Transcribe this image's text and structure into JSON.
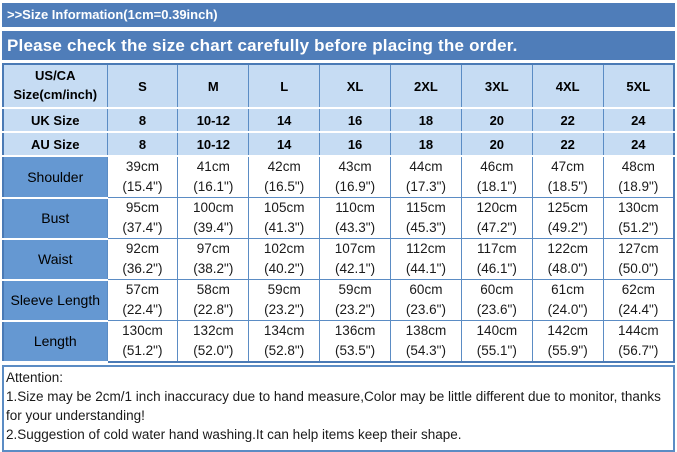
{
  "colors": {
    "bar_blue": "#4f7db9",
    "header_light_blue": "#c6dcf3",
    "label_blue": "#6598d2",
    "grid_blue": "#5b8cc4",
    "text_white": "#ffffff",
    "text_black": "#1a1a1a"
  },
  "header": {
    "title": ">>Size Information(1cm=0.39inch)"
  },
  "notice": {
    "text": "Please check the size chart carefully before placing the order."
  },
  "size_table": {
    "corner_label": "US/CA\nSize(cm/inch)",
    "columns": [
      "S",
      "M",
      "L",
      "XL",
      "2XL",
      "3XL",
      "4XL",
      "5XL"
    ],
    "size_rows": [
      {
        "label": "UK Size",
        "values": [
          "8",
          "10-12",
          "14",
          "16",
          "18",
          "20",
          "22",
          "24"
        ]
      },
      {
        "label": "AU Size",
        "values": [
          "8",
          "10-12",
          "14",
          "16",
          "18",
          "20",
          "22",
          "24"
        ]
      }
    ],
    "measurement_rows": [
      {
        "label": "Shoulder",
        "values": [
          {
            "cm": "39cm",
            "inch": "(15.4\")"
          },
          {
            "cm": "41cm",
            "inch": "(16.1\")"
          },
          {
            "cm": "42cm",
            "inch": "(16.5\")"
          },
          {
            "cm": "43cm",
            "inch": "(16.9\")"
          },
          {
            "cm": "44cm",
            "inch": "(17.3\")"
          },
          {
            "cm": "46cm",
            "inch": "(18.1\")"
          },
          {
            "cm": "47cm",
            "inch": "(18.5\")"
          },
          {
            "cm": "48cm",
            "inch": "(18.9\")"
          }
        ]
      },
      {
        "label": "Bust",
        "values": [
          {
            "cm": "95cm",
            "inch": "(37.4\")"
          },
          {
            "cm": "100cm",
            "inch": "(39.4\")"
          },
          {
            "cm": "105cm",
            "inch": "(41.3\")"
          },
          {
            "cm": "110cm",
            "inch": "(43.3\")"
          },
          {
            "cm": "115cm",
            "inch": "(45.3\")"
          },
          {
            "cm": "120cm",
            "inch": "(47.2\")"
          },
          {
            "cm": "125cm",
            "inch": "(49.2\")"
          },
          {
            "cm": "130cm",
            "inch": "(51.2\")"
          }
        ]
      },
      {
        "label": "Waist",
        "values": [
          {
            "cm": "92cm",
            "inch": "(36.2\")"
          },
          {
            "cm": "97cm",
            "inch": "(38.2\")"
          },
          {
            "cm": "102cm",
            "inch": "(40.2\")"
          },
          {
            "cm": "107cm",
            "inch": "(42.1\")"
          },
          {
            "cm": "112cm",
            "inch": "(44.1\")"
          },
          {
            "cm": "117cm",
            "inch": "(46.1\")"
          },
          {
            "cm": "122cm",
            "inch": "(48.0\")"
          },
          {
            "cm": "127cm",
            "inch": "(50.0\")"
          }
        ]
      },
      {
        "label": "Sleeve Length",
        "values": [
          {
            "cm": "57cm",
            "inch": "(22.4\")"
          },
          {
            "cm": "58cm",
            "inch": "(22.8\")"
          },
          {
            "cm": "59cm",
            "inch": "(23.2\")"
          },
          {
            "cm": "59cm",
            "inch": "(23.2\")"
          },
          {
            "cm": "60cm",
            "inch": "(23.6\")"
          },
          {
            "cm": "60cm",
            "inch": "(23.6\")"
          },
          {
            "cm": "61cm",
            "inch": "(24.0\")"
          },
          {
            "cm": "62cm",
            "inch": "(24.4\")"
          }
        ]
      },
      {
        "label": "Length",
        "values": [
          {
            "cm": "130cm",
            "inch": "(51.2\")"
          },
          {
            "cm": "132cm",
            "inch": "(52.0\")"
          },
          {
            "cm": "134cm",
            "inch": "(52.8\")"
          },
          {
            "cm": "136cm",
            "inch": "(53.5\")"
          },
          {
            "cm": "138cm",
            "inch": "(54.3\")"
          },
          {
            "cm": "140cm",
            "inch": "(55.1\")"
          },
          {
            "cm": "142cm",
            "inch": "(55.9\")"
          },
          {
            "cm": "144cm",
            "inch": "(56.7\")"
          }
        ]
      }
    ]
  },
  "attention": {
    "title": "Attention:",
    "notes": [
      "1.Size may be 2cm/1 inch inaccuracy due to hand measure,Color may be little different due to monitor, thanks for your understanding!",
      "2.Suggestion of cold water hand washing.It can help items keep their shape."
    ]
  }
}
